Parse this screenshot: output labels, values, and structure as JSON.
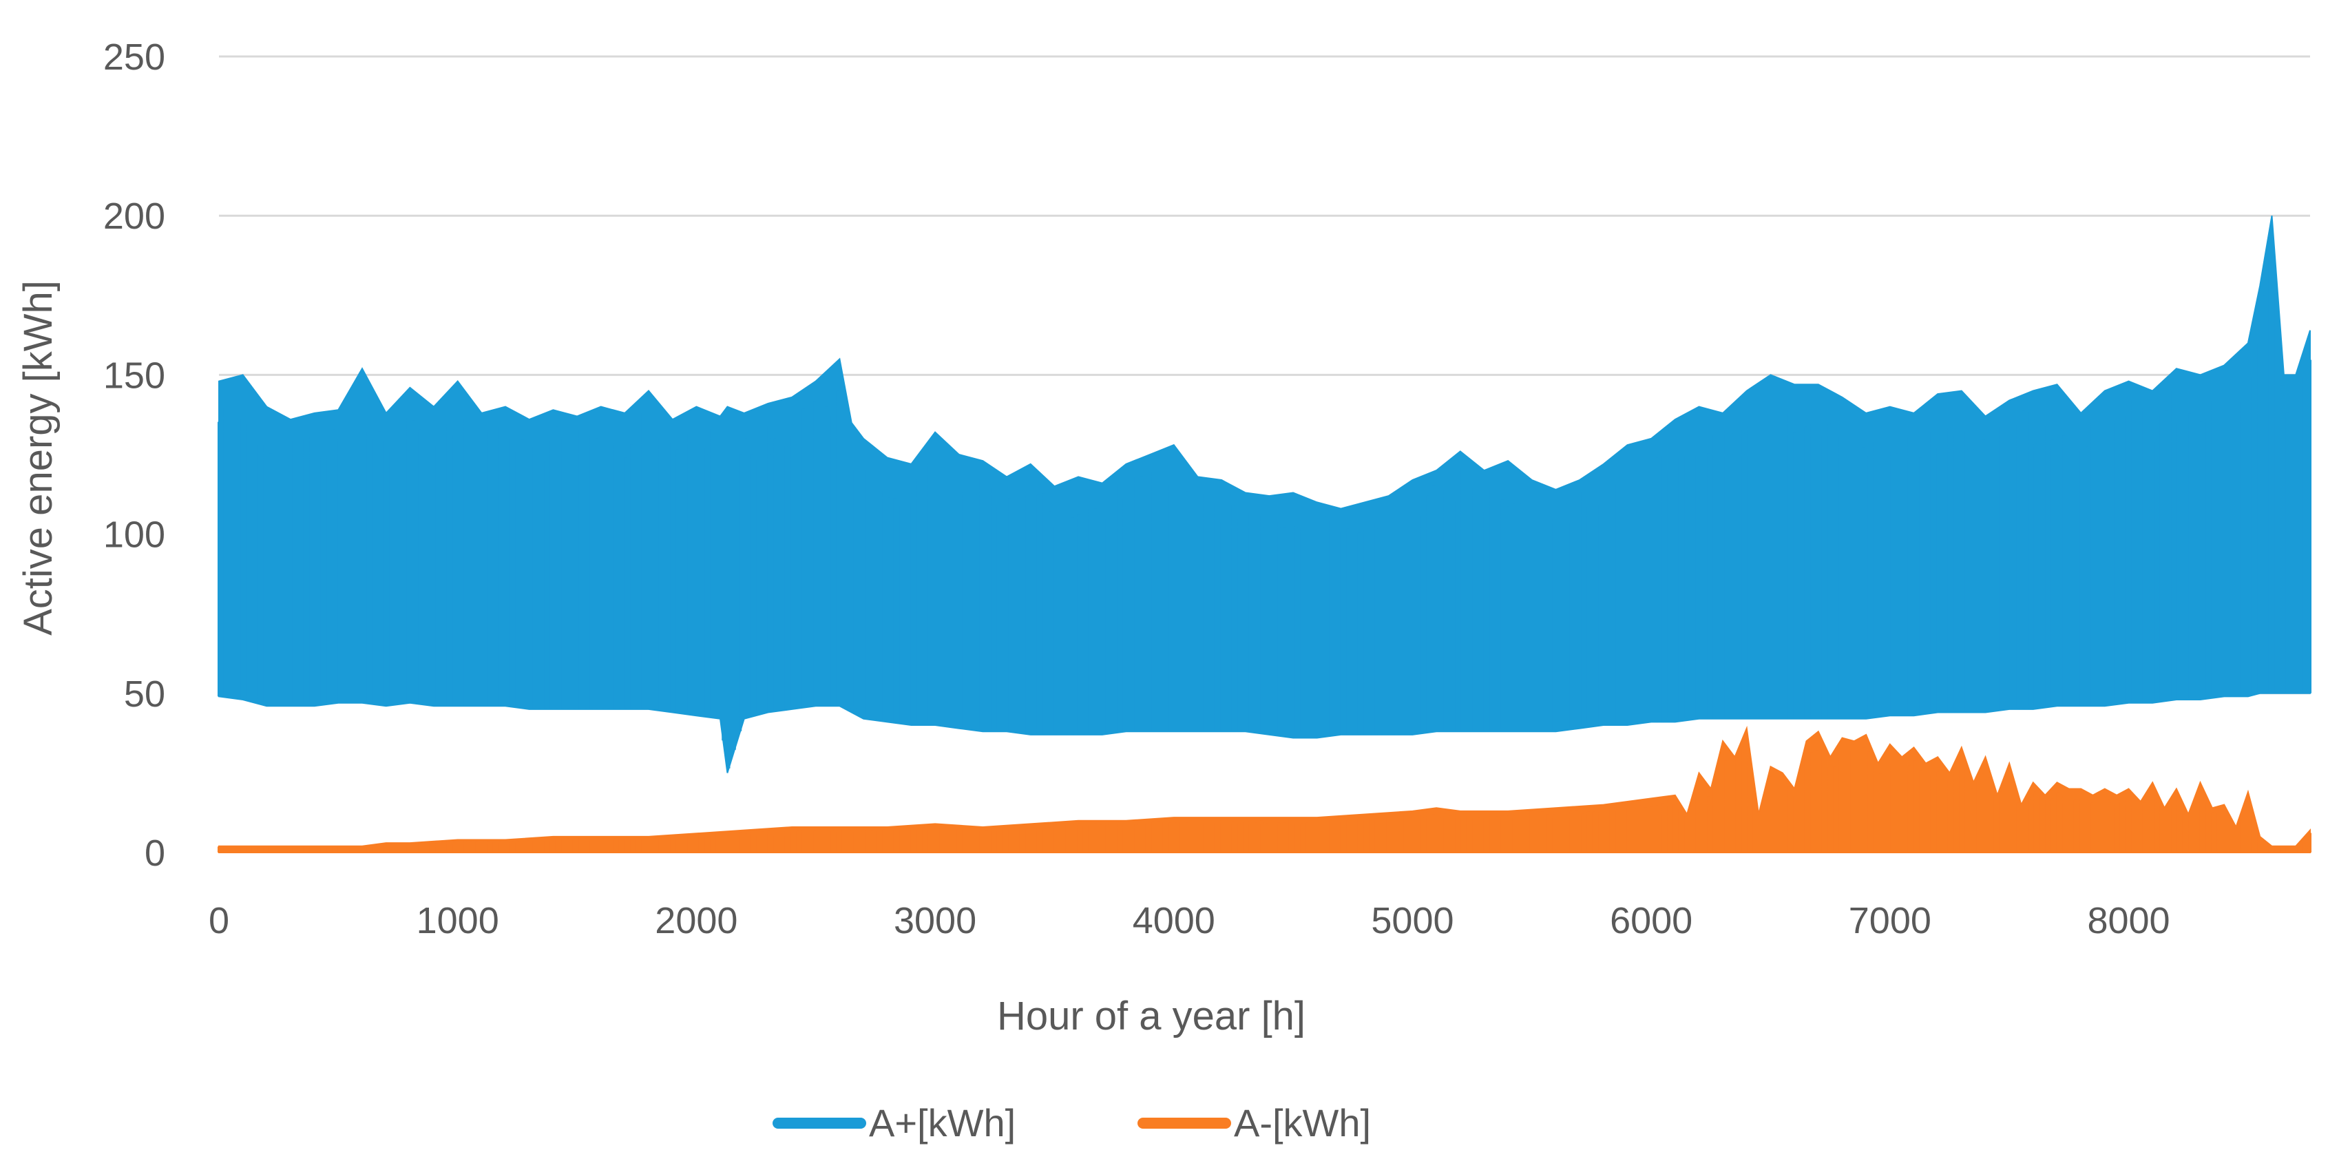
{
  "chart_data": {
    "type": "line",
    "title": "",
    "xlabel": "Hour of a year [h]",
    "ylabel": "Active energy [kWh]",
    "xlim": [
      0,
      8760
    ],
    "ylim": [
      0,
      250
    ],
    "grid": true,
    "legend_position": "bottom",
    "x_ticks": [
      0,
      1000,
      2000,
      3000,
      4000,
      5000,
      6000,
      7000,
      8000
    ],
    "x_tick_labels": [
      "0",
      "1000",
      "2000",
      "3000",
      "4000",
      "5000",
      "6000",
      "7000",
      "8000"
    ],
    "y_ticks": [
      0,
      50,
      100,
      150,
      200,
      250
    ],
    "y_tick_labels": [
      "0",
      "50",
      "100",
      "150",
      "200",
      "250"
    ],
    "series": [
      {
        "name": "A+[kWh]",
        "color": "#1a9bd7",
        "description": "hourly active energy consumption; band between daily min and max",
        "envelope_x": [
          0,
          100,
          200,
          300,
          400,
          500,
          600,
          700,
          800,
          900,
          1000,
          1100,
          1200,
          1300,
          1400,
          1500,
          1600,
          1700,
          1800,
          1900,
          2000,
          2100,
          2130,
          2200,
          2300,
          2400,
          2500,
          2600,
          2650,
          2700,
          2800,
          2900,
          3000,
          3100,
          3200,
          3300,
          3400,
          3500,
          3600,
          3700,
          3800,
          3900,
          4000,
          4100,
          4200,
          4300,
          4400,
          4500,
          4600,
          4700,
          4800,
          4900,
          5000,
          5100,
          5200,
          5300,
          5400,
          5500,
          5600,
          5700,
          5800,
          5900,
          6000,
          6100,
          6200,
          6300,
          6400,
          6500,
          6600,
          6700,
          6800,
          6900,
          7000,
          7100,
          7200,
          7300,
          7400,
          7500,
          7600,
          7700,
          7800,
          7900,
          8000,
          8100,
          8200,
          8300,
          8400,
          8500,
          8550,
          8600,
          8650,
          8700,
          8760
        ],
        "envelope_max": [
          148,
          150,
          140,
          136,
          138,
          139,
          152,
          138,
          146,
          140,
          148,
          138,
          140,
          136,
          139,
          137,
          140,
          138,
          145,
          136,
          140,
          137,
          140,
          138,
          141,
          143,
          148,
          155,
          135,
          130,
          124,
          122,
          132,
          125,
          123,
          118,
          122,
          115,
          118,
          116,
          122,
          125,
          128,
          118,
          117,
          113,
          112,
          113,
          110,
          108,
          110,
          112,
          117,
          120,
          126,
          120,
          123,
          117,
          114,
          117,
          122,
          128,
          130,
          136,
          140,
          138,
          145,
          150,
          147,
          147,
          143,
          138,
          140,
          138,
          144,
          145,
          137,
          142,
          145,
          147,
          138,
          145,
          148,
          145,
          152,
          150,
          153,
          160,
          178,
          200,
          150,
          150,
          164
        ],
        "envelope_min": [
          49,
          48,
          46,
          46,
          46,
          47,
          47,
          46,
          47,
          46,
          46,
          46,
          46,
          45,
          45,
          45,
          45,
          45,
          45,
          44,
          43,
          42,
          25,
          42,
          44,
          45,
          46,
          46,
          44,
          42,
          41,
          40,
          40,
          39,
          38,
          38,
          37,
          37,
          37,
          37,
          38,
          38,
          38,
          38,
          38,
          38,
          37,
          36,
          36,
          37,
          37,
          37,
          37,
          38,
          38,
          38,
          38,
          38,
          38,
          39,
          40,
          40,
          41,
          41,
          42,
          42,
          42,
          42,
          42,
          42,
          42,
          42,
          43,
          43,
          44,
          44,
          44,
          45,
          45,
          46,
          46,
          46,
          47,
          47,
          48,
          48,
          49,
          49,
          50,
          50,
          50,
          50,
          50
        ]
      },
      {
        "name": "A-[kWh]",
        "color": "#f97d22",
        "description": "hourly active energy export; envelope of peaks above zero",
        "envelope_x": [
          0,
          200,
          400,
          600,
          700,
          800,
          1000,
          1200,
          1400,
          1600,
          1800,
          2000,
          2200,
          2400,
          2600,
          2800,
          3000,
          3200,
          3400,
          3600,
          3800,
          4000,
          4200,
          4400,
          4600,
          4800,
          5000,
          5100,
          5200,
          5400,
          5600,
          5800,
          5900,
          6000,
          6100,
          6150,
          6200,
          6250,
          6300,
          6350,
          6400,
          6450,
          6500,
          6550,
          6600,
          6650,
          6700,
          6750,
          6800,
          6850,
          6900,
          6950,
          7000,
          7050,
          7100,
          7150,
          7200,
          7250,
          7300,
          7350,
          7400,
          7450,
          7500,
          7550,
          7600,
          7650,
          7700,
          7750,
          7800,
          7850,
          7900,
          7950,
          8000,
          8050,
          8100,
          8150,
          8200,
          8250,
          8300,
          8350,
          8400,
          8450,
          8500,
          8550,
          8600,
          8700,
          8760
        ],
        "envelope_max": [
          2,
          2,
          2,
          2,
          3,
          3,
          4,
          4,
          5,
          5,
          5,
          6,
          7,
          8,
          8,
          8,
          9,
          8,
          9,
          10,
          10,
          11,
          11,
          11,
          11,
          12,
          13,
          14,
          13,
          13,
          14,
          15,
          16,
          17,
          18,
          12,
          25,
          20,
          35,
          30,
          39,
          12,
          27,
          25,
          20,
          35,
          38,
          30,
          36,
          35,
          37,
          28,
          34,
          30,
          33,
          28,
          30,
          25,
          33,
          22,
          30,
          18,
          28,
          15,
          22,
          18,
          22,
          20,
          20,
          18,
          20,
          18,
          20,
          16,
          22,
          14,
          20,
          12,
          22,
          14,
          15,
          8,
          19,
          5,
          2,
          2,
          7
        ],
        "envelope_min": [
          0,
          0,
          0,
          0,
          0,
          0,
          0,
          0,
          0,
          0,
          0,
          0,
          0,
          0,
          0,
          0,
          0,
          0,
          0,
          0,
          0,
          0,
          0,
          0,
          0,
          0,
          0,
          0,
          0,
          0,
          0,
          0,
          0,
          0,
          0,
          0,
          0,
          0,
          0,
          0,
          0,
          0,
          0,
          0,
          0,
          0,
          0,
          0,
          0,
          0,
          0,
          0,
          0,
          0,
          0,
          0,
          0,
          0,
          0,
          0,
          0,
          0,
          0,
          0,
          0,
          0,
          0,
          0,
          0,
          0,
          0,
          0,
          0,
          0,
          0,
          0,
          0,
          0,
          0,
          0,
          0,
          0,
          0,
          0,
          0,
          0,
          0
        ]
      }
    ]
  }
}
